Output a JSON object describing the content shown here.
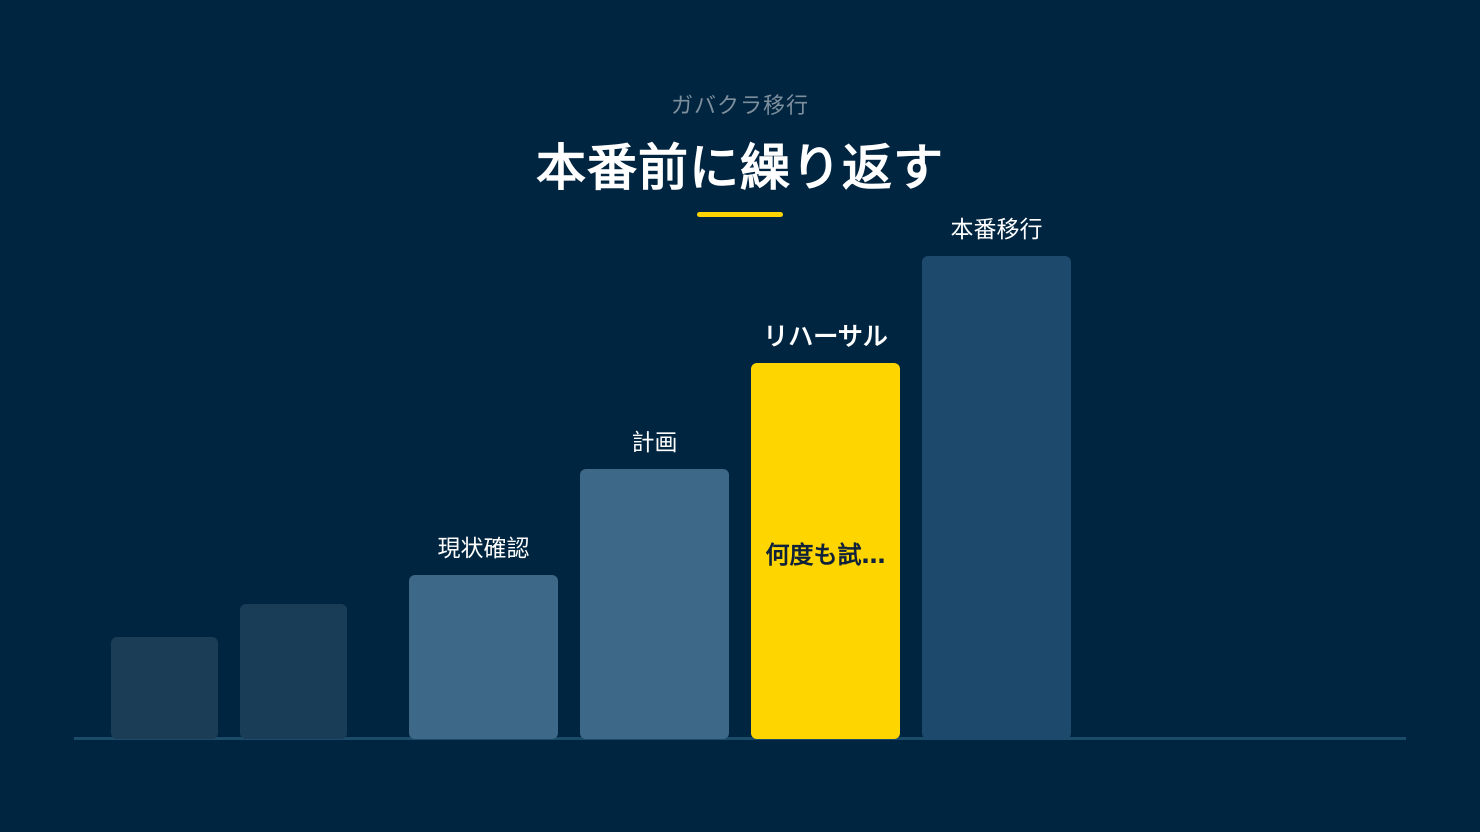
{
  "header": {
    "subtitle": "ガバクラ移行",
    "title": "本番前に繰り返す"
  },
  "steps": [
    {
      "label": "",
      "inner": "",
      "level": 1,
      "color": "#1b3d55"
    },
    {
      "label": "",
      "inner": "",
      "level": 2,
      "color": "#1a3d57"
    },
    {
      "label": "現状確認",
      "inner": "",
      "level": 3,
      "color": "#3d6887"
    },
    {
      "label": "計画",
      "inner": "",
      "level": 4,
      "color": "#3d6887"
    },
    {
      "label": "リハーサル",
      "inner": "何度も試…",
      "level": 5,
      "color": "#ffd500",
      "highlight": true
    },
    {
      "label": "本番移行",
      "inner": "",
      "level": 6,
      "color": "#1d4a6c"
    }
  ],
  "colors": {
    "background": "#002540",
    "accent": "#ffd500"
  }
}
